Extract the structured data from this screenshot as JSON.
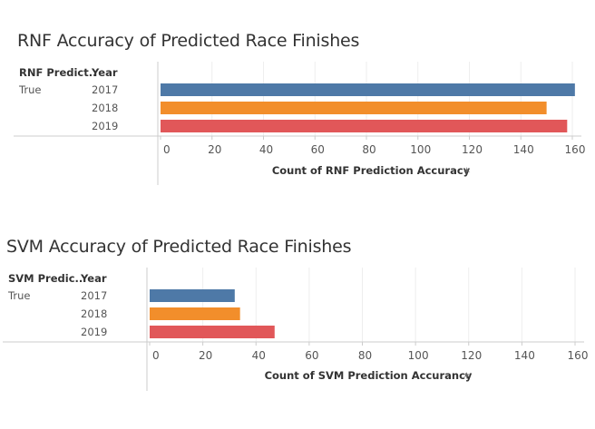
{
  "colors": {
    "year_2017": "#4e79a7",
    "year_2018": "#f28e2b",
    "year_2019": "#e15759",
    "axis": "#cccccc",
    "gridline": "#eeeeee",
    "text": "#555555"
  },
  "chart_data": [
    {
      "type": "bar",
      "orientation": "horizontal",
      "title": "RNF Accuracy of Predicted Race Finishes",
      "row_header_1": "RNF Predict..",
      "row_header_2": "Year",
      "group_label": "True",
      "categories": [
        "2017",
        "2018",
        "2019"
      ],
      "values": [
        161,
        150,
        158
      ],
      "xlabel": "Count of RNF Prediction Accuracy",
      "xlim": [
        0,
        160
      ],
      "xticks": [
        "0",
        "20",
        "40",
        "60",
        "80",
        "100",
        "120",
        "140",
        "160"
      ],
      "grid": true
    },
    {
      "type": "bar",
      "orientation": "horizontal",
      "title": "SVM Accuracy of Predicted Race Finishes",
      "row_header_1": "SVM Predic..",
      "row_header_2": "Year",
      "group_label": "True",
      "categories": [
        "2017",
        "2018",
        "2019"
      ],
      "values": [
        32,
        34,
        47
      ],
      "xlabel": "Count of SVM Prediction Accurancy",
      "xlim": [
        0,
        160
      ],
      "xticks": [
        "0",
        "20",
        "40",
        "60",
        "80",
        "100",
        "120",
        "140",
        "160"
      ],
      "grid": true
    }
  ]
}
